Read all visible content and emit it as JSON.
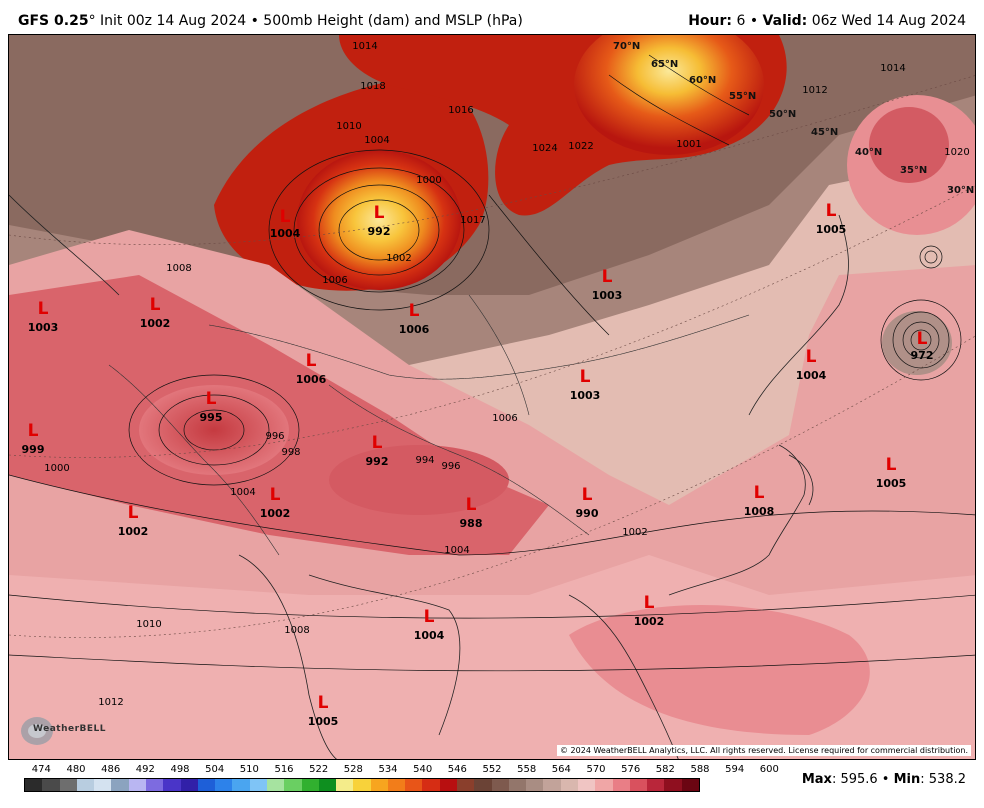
{
  "header": {
    "model": "GFS 0.25",
    "degree": "°",
    "init": " Init 00z 14 Aug 2024 • 500mb Height (dam) and MSLP (hPa)",
    "hour_label": "Hour:",
    "hour_value": " 6 • ",
    "valid_label": "Valid:",
    "valid_value": " 06z Wed 14 Aug 2024"
  },
  "lows": [
    {
      "value": "992"
    },
    {
      "value": "1004"
    },
    {
      "value": "1003"
    },
    {
      "value": "1002"
    },
    {
      "value": "1006"
    },
    {
      "value": "1003"
    },
    {
      "value": "1006"
    },
    {
      "value": "995"
    },
    {
      "value": "999"
    },
    {
      "value": "1003"
    },
    {
      "value": "1005"
    },
    {
      "value": "972"
    },
    {
      "value": "1004"
    },
    {
      "value": "992"
    },
    {
      "value": "1002"
    },
    {
      "value": "1002"
    },
    {
      "value": "988"
    },
    {
      "value": "990"
    },
    {
      "value": "1008"
    },
    {
      "value": "1005"
    },
    {
      "value": "1004"
    },
    {
      "value": "1002"
    },
    {
      "value": "1005"
    }
  ],
  "isobar_labels": [
    "1018",
    "1014",
    "1010",
    "1004",
    "1000",
    "1002",
    "1006",
    "1008",
    "996",
    "994",
    "996",
    "998",
    "1000",
    "1004",
    "1006",
    "1004",
    "1002",
    "1010",
    "1012",
    "1008",
    "1012",
    "1017",
    "1016",
    "1022",
    "1024",
    "1014",
    "1020",
    "1001"
  ],
  "lat_labels": [
    "70°N",
    "65°N",
    "60°N",
    "55°N",
    "50°N",
    "45°N",
    "40°N",
    "35°N",
    "30°N"
  ],
  "copyright": "© 2024 WeatherBELL Analytics, LLC. All rights reserved. License required for commercial distribution.",
  "logo_text": "WeatherBELL",
  "legend": {
    "labels": [
      "474",
      "480",
      "486",
      "492",
      "498",
      "504",
      "510",
      "516",
      "522",
      "528",
      "534",
      "540",
      "546",
      "552",
      "558",
      "564",
      "570",
      "576",
      "582",
      "588",
      "594",
      "600"
    ],
    "colors": [
      "#2b2b2b",
      "#4a4a4a",
      "#6e6e6e",
      "#b8cde0",
      "#d4e2f0",
      "#8ba3bf",
      "#b9b6f2",
      "#7d6be0",
      "#4a35c8",
      "#3120a8",
      "#1e5fd8",
      "#2d82ea",
      "#4aa5f0",
      "#7fc4f6",
      "#a6e3a0",
      "#6acf62",
      "#31b02f",
      "#0e8f1f",
      "#f4ec8a",
      "#f8d23a",
      "#f7a51f",
      "#f27d1a",
      "#e85518",
      "#d62d14",
      "#b80f10",
      "#8a3f2c",
      "#6b4336",
      "#7e5a4e",
      "#93766b",
      "#a98d83",
      "#c2a39a",
      "#d9b7ae",
      "#f0c5c3",
      "#f0a6a6",
      "#e97e86",
      "#d9515e",
      "#b9263a",
      "#8f0f1f",
      "#6b0512"
    ]
  },
  "maxmin": {
    "max_label": "Max",
    "max_value": ": 595.6 • ",
    "min_label": "Min",
    "min_value": ": 538.2"
  }
}
